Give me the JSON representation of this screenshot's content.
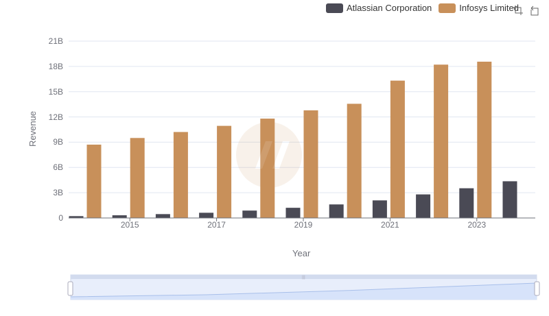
{
  "legend": {
    "items": [
      {
        "label": "Atlassian Corporation",
        "color": "#4a4a55"
      },
      {
        "label": "Infosys Limited",
        "color": "#c8905a"
      }
    ]
  },
  "toolbar": {
    "zoom_icon": "zoom-select-icon",
    "restore_icon": "restore-icon"
  },
  "chart_data": {
    "type": "bar",
    "xlabel": "Year",
    "ylabel": "Revenue",
    "ylim": [
      0,
      21000000000
    ],
    "y_ticks": [
      {
        "value": 0,
        "label": "0"
      },
      {
        "value": 3000000000,
        "label": "3B"
      },
      {
        "value": 6000000000,
        "label": "6B"
      },
      {
        "value": 9000000000,
        "label": "9B"
      },
      {
        "value": 12000000000,
        "label": "12B"
      },
      {
        "value": 15000000000,
        "label": "15B"
      },
      {
        "value": 18000000000,
        "label": "18B"
      },
      {
        "value": 21000000000,
        "label": "21B"
      }
    ],
    "categories": [
      "2014",
      "2015",
      "2016",
      "2017",
      "2018",
      "2019",
      "2020",
      "2021",
      "2022",
      "2023",
      "2024"
    ],
    "x_tick_labels": [
      "2015",
      "2017",
      "2019",
      "2021",
      "2023"
    ],
    "series": [
      {
        "name": "Atlassian Corporation",
        "color": "#4a4a55",
        "values": [
          220000000,
          320000000,
          460000000,
          620000000,
          880000000,
          1210000000,
          1610000000,
          2090000000,
          2800000000,
          3530000000,
          4360000000
        ]
      },
      {
        "name": "Infosys Limited",
        "color": "#c8905a",
        "values": [
          8710000000,
          9500000000,
          10210000000,
          10940000000,
          11800000000,
          12780000000,
          13560000000,
          16310000000,
          18210000000,
          18560000000,
          null
        ]
      }
    ],
    "grid": true,
    "legend_position": "top-right"
  }
}
